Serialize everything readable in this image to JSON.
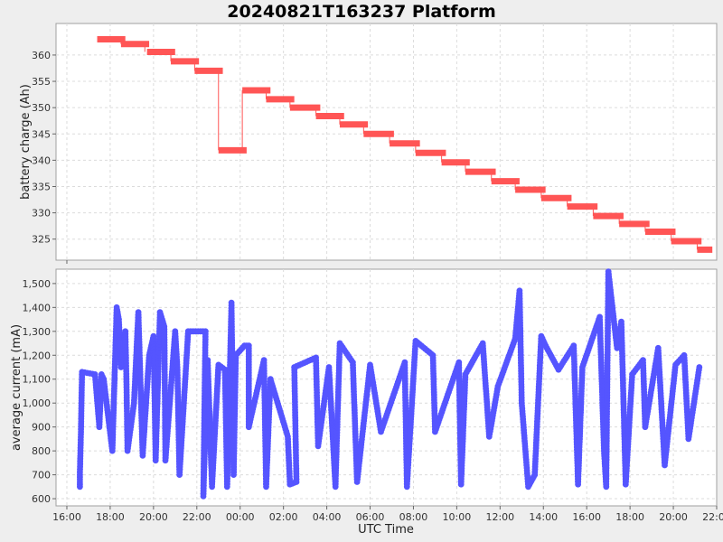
{
  "title": "20240821T163237 Platform",
  "chart_data": [
    {
      "type": "line",
      "series_color": "#ff5555",
      "ylabel": "battery charge (Ah)",
      "ylim": [
        321,
        366
      ],
      "yticks": [
        325,
        330,
        335,
        340,
        345,
        350,
        355,
        360
      ],
      "xlim": [
        15.5,
        46.0
      ],
      "segments": [
        {
          "x0": 17.4,
          "x1": 18.7,
          "y": 363.0
        },
        {
          "x0": 18.5,
          "x1": 19.8,
          "y": 362.1
        },
        {
          "x0": 19.7,
          "x1": 21.0,
          "y": 360.6
        },
        {
          "x0": 20.8,
          "x1": 22.1,
          "y": 358.8
        },
        {
          "x0": 21.9,
          "x1": 23.2,
          "y": 357.0
        },
        {
          "x0": 23.0,
          "x1": 24.3,
          "y": 341.9
        },
        {
          "x0": 24.1,
          "x1": 25.4,
          "y": 353.3
        },
        {
          "x0": 25.2,
          "x1": 26.5,
          "y": 351.6
        },
        {
          "x0": 26.3,
          "x1": 27.7,
          "y": 350.0
        },
        {
          "x0": 27.5,
          "x1": 28.8,
          "y": 348.4
        },
        {
          "x0": 28.6,
          "x1": 29.9,
          "y": 346.8
        },
        {
          "x0": 29.7,
          "x1": 31.1,
          "y": 345.0
        },
        {
          "x0": 30.9,
          "x1": 32.3,
          "y": 343.2
        },
        {
          "x0": 32.1,
          "x1": 33.5,
          "y": 341.4
        },
        {
          "x0": 33.3,
          "x1": 34.6,
          "y": 339.6
        },
        {
          "x0": 34.4,
          "x1": 35.8,
          "y": 337.8
        },
        {
          "x0": 35.6,
          "x1": 36.9,
          "y": 336.0
        },
        {
          "x0": 36.7,
          "x1": 38.1,
          "y": 334.4
        },
        {
          "x0": 37.9,
          "x1": 39.3,
          "y": 332.8
        },
        {
          "x0": 39.1,
          "x1": 40.5,
          "y": 331.2
        },
        {
          "x0": 40.3,
          "x1": 41.7,
          "y": 329.4
        },
        {
          "x0": 41.5,
          "x1": 42.9,
          "y": 327.9
        },
        {
          "x0": 42.7,
          "x1": 44.1,
          "y": 326.4
        },
        {
          "x0": 43.9,
          "x1": 45.3,
          "y": 324.6
        },
        {
          "x0": 45.1,
          "x1": 45.8,
          "y": 323.0
        }
      ]
    },
    {
      "type": "line",
      "series_color": "#5555ff",
      "xlabel": "UTC Time",
      "ylabel": "average current (mA)",
      "ylim": [
        570,
        1560
      ],
      "yticks": [
        600,
        700,
        800,
        900,
        1000,
        1100,
        1200,
        1300,
        1400,
        1500
      ],
      "ytick_labels": [
        "600",
        "700",
        "800",
        "900",
        "1,000",
        "1,100",
        "1,200",
        "1,300",
        "1,400",
        "1,500"
      ],
      "xlim": [
        15.5,
        46.0
      ],
      "xticks": [
        16,
        18,
        20,
        22,
        24,
        26,
        28,
        30,
        32,
        34,
        36,
        38,
        40,
        42,
        44,
        46
      ],
      "xtick_labels": [
        "16:00",
        "18:00",
        "20:00",
        "22:00",
        "00:00",
        "02:00",
        "04:00",
        "06:00",
        "08:00",
        "10:00",
        "12:00",
        "14:00",
        "16:00",
        "18:00",
        "20:00",
        "22:00"
      ],
      "points": [
        [
          16.6,
          650
        ],
        [
          16.6,
          700
        ],
        [
          16.65,
          880
        ],
        [
          16.7,
          1130
        ],
        [
          17.3,
          1120
        ],
        [
          17.5,
          900
        ],
        [
          17.6,
          1120
        ],
        [
          17.7,
          1100
        ],
        [
          17.9,
          950
        ],
        [
          18.1,
          800
        ],
        [
          18.3,
          1400
        ],
        [
          18.4,
          1350
        ],
        [
          18.5,
          1150
        ],
        [
          18.7,
          1300
        ],
        [
          18.75,
          1100
        ],
        [
          18.8,
          800
        ],
        [
          19.1,
          1000
        ],
        [
          19.3,
          1380
        ],
        [
          19.5,
          780
        ],
        [
          19.8,
          1200
        ],
        [
          20.0,
          1280
        ],
        [
          20.1,
          760
        ],
        [
          20.3,
          1380
        ],
        [
          20.5,
          1320
        ],
        [
          20.55,
          760
        ],
        [
          21.0,
          1300
        ],
        [
          21.1,
          1150
        ],
        [
          21.2,
          700
        ],
        [
          21.6,
          1300
        ],
        [
          22.4,
          1300
        ],
        [
          22.3,
          610
        ],
        [
          22.5,
          1180
        ],
        [
          22.7,
          650
        ],
        [
          23.0,
          1160
        ],
        [
          23.3,
          1140
        ],
        [
          23.4,
          650
        ],
        [
          23.6,
          1420
        ],
        [
          23.7,
          700
        ],
        [
          23.8,
          1200
        ],
        [
          24.2,
          1240
        ],
        [
          24.4,
          1240
        ],
        [
          24.4,
          900
        ],
        [
          25.1,
          1180
        ],
        [
          25.2,
          650
        ],
        [
          25.4,
          1100
        ],
        [
          26.2,
          860
        ],
        [
          26.3,
          660
        ],
        [
          26.6,
          670
        ],
        [
          26.5,
          1150
        ],
        [
          27.5,
          1190
        ],
        [
          27.6,
          820
        ],
        [
          28.1,
          1150
        ],
        [
          28.4,
          650
        ],
        [
          28.6,
          1250
        ],
        [
          29.2,
          1170
        ],
        [
          29.4,
          670
        ],
        [
          30.0,
          1160
        ],
        [
          30.5,
          880
        ],
        [
          31.6,
          1170
        ],
        [
          31.7,
          650
        ],
        [
          32.1,
          1260
        ],
        [
          32.9,
          1200
        ],
        [
          33.0,
          880
        ],
        [
          34.1,
          1170
        ],
        [
          34.2,
          660
        ],
        [
          34.4,
          1120
        ],
        [
          35.2,
          1250
        ],
        [
          35.5,
          860
        ],
        [
          35.9,
          1070
        ],
        [
          36.7,
          1270
        ],
        [
          36.9,
          1470
        ],
        [
          37.0,
          1000
        ],
        [
          37.3,
          650
        ],
        [
          37.6,
          700
        ],
        [
          37.9,
          1280
        ],
        [
          38.1,
          1240
        ],
        [
          38.7,
          1140
        ],
        [
          39.4,
          1240
        ],
        [
          39.6,
          660
        ],
        [
          39.8,
          1150
        ],
        [
          40.6,
          1360
        ],
        [
          40.8,
          800
        ],
        [
          40.9,
          650
        ],
        [
          41.0,
          1550
        ],
        [
          41.4,
          1230
        ],
        [
          41.6,
          1340
        ],
        [
          41.8,
          660
        ],
        [
          42.1,
          1120
        ],
        [
          42.6,
          1180
        ],
        [
          42.7,
          900
        ],
        [
          43.3,
          1230
        ],
        [
          43.6,
          740
        ],
        [
          44.1,
          1160
        ],
        [
          44.5,
          1200
        ],
        [
          44.7,
          850
        ],
        [
          45.2,
          1150
        ]
      ]
    }
  ]
}
